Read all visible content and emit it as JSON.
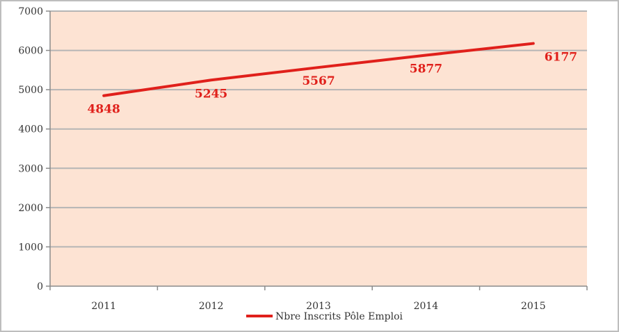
{
  "chart_data": {
    "type": "line",
    "title": "",
    "xlabel": "",
    "ylabel": "",
    "categories": [
      "2011",
      "2012",
      "2013",
      "2014",
      "2015"
    ],
    "ylim": [
      0,
      7000
    ],
    "yticks": [
      0,
      1000,
      2000,
      3000,
      4000,
      5000,
      6000,
      7000
    ],
    "grid": true,
    "legend_position": "bottom",
    "series": [
      {
        "name": "Nbre Inscrits Pôle Emploi",
        "values": [
          4848,
          5245,
          5567,
          5877,
          6177
        ],
        "data_labels": [
          "4848",
          "5245",
          "5567",
          "5877",
          "6177"
        ],
        "color": "#e0201b"
      }
    ],
    "colors": {
      "plot_background": "#fde3d3",
      "gridline": "#b5b5b5",
      "label": "#e0201b"
    }
  }
}
